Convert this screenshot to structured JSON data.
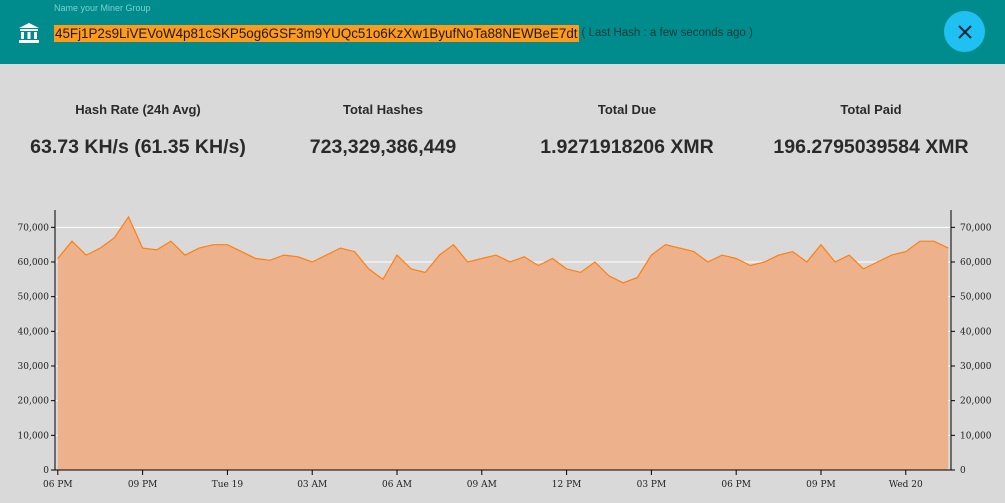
{
  "header": {
    "group_placeholder": "Name your Miner Group",
    "address": "45Fj1P2s9LiVEVoW4p81cSKP5og6GSF3m9YUQc51o6KzXw1ByufNoTa88NEWBeE7dt",
    "last_hash": "( Last Hash : a few seconds ago )",
    "close_icon": "close-icon",
    "bank_icon": "bank-icon"
  },
  "stats": [
    {
      "label": "Hash Rate (24h Avg)",
      "value": "63.73 KH/s (61.35 KH/s)"
    },
    {
      "label": "Total Hashes",
      "value": "723,329,386,449"
    },
    {
      "label": "Total Due",
      "value": "1.9271918206 XMR"
    },
    {
      "label": "Total Paid",
      "value": "196.2795039584 XMR"
    }
  ],
  "colors": {
    "header_bg": "#008c8c",
    "address_highlight": "#ff9a1a",
    "close_button": "#1ec1f2",
    "chart_line": "#ff7f0e",
    "chart_fill": "#edb28c",
    "background": "#d9d9d9"
  },
  "chart_data": {
    "type": "area",
    "ylim": [
      0,
      75000
    ],
    "y_ticks": [
      "0",
      "10,000",
      "20,000",
      "30,000",
      "40,000",
      "50,000",
      "60,000",
      "70,000"
    ],
    "y_tick_values": [
      0,
      10000,
      20000,
      30000,
      40000,
      50000,
      60000,
      70000
    ],
    "x_ticks": [
      "06 PM",
      "09 PM",
      "Tue 19",
      "03 AM",
      "06 AM",
      "09 AM",
      "12 PM",
      "03 PM",
      "06 PM",
      "09 PM",
      "Wed 20"
    ],
    "x_tick_hours": [
      0,
      3,
      6,
      9,
      12,
      15,
      18,
      21,
      24,
      27,
      30
    ],
    "x_range_hours": [
      -0.1,
      31.6
    ],
    "axis_right": true,
    "grid": true,
    "series": [
      {
        "hours": [
          0,
          0.5,
          1,
          1.5,
          2,
          2.5,
          3,
          3.5,
          4,
          4.5,
          5,
          5.5,
          6,
          6.5,
          7,
          7.5,
          8,
          8.5,
          9,
          9.5,
          10,
          10.5,
          11,
          11.5,
          12,
          12.5,
          13,
          13.5,
          14,
          14.5,
          15,
          15.5,
          16,
          16.5,
          17,
          17.5,
          18,
          18.5,
          19,
          19.5,
          20,
          20.5,
          21,
          21.5,
          22,
          22.5,
          23,
          23.5,
          24,
          24.5,
          25,
          25.5,
          26,
          26.5,
          27,
          27.5,
          28,
          28.5,
          29,
          29.5,
          30,
          30.5,
          31,
          31.5
        ],
        "values": [
          61000,
          66000,
          62000,
          64000,
          67000,
          73000,
          64000,
          63500,
          66000,
          62000,
          64000,
          65000,
          65000,
          63000,
          61000,
          60500,
          62000,
          61500,
          60000,
          62000,
          64000,
          63000,
          58000,
          55000,
          62000,
          58000,
          57000,
          62000,
          65000,
          60000,
          61000,
          62000,
          60000,
          61500,
          59000,
          61000,
          58000,
          57000,
          60000,
          56000,
          54000,
          55500,
          62000,
          65000,
          64000,
          63000,
          60000,
          62000,
          61000,
          59000,
          60000,
          62000,
          63000,
          60000,
          65000,
          60000,
          62000,
          58000,
          60000,
          62000,
          63000,
          66000,
          66000,
          64000
        ]
      }
    ]
  }
}
